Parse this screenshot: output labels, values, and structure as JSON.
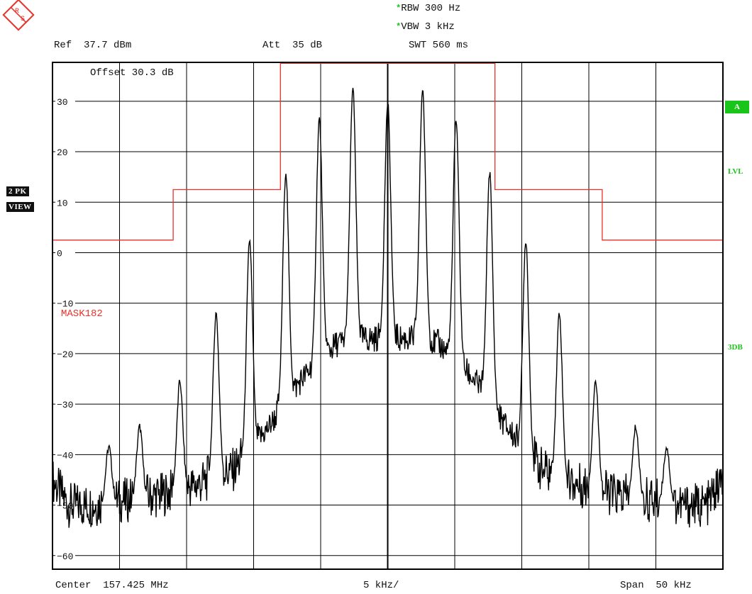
{
  "header": {
    "rbw": "RBW 300 Hz",
    "vbw": "VBW 3 kHz",
    "swt": "SWT 560 ms",
    "star_glyph": "*",
    "ref": "Ref  37.7 dBm",
    "att": "Att  35 dB",
    "offset": "Offset  30.3 dB"
  },
  "side_left": {
    "trace_badge": "2 PK",
    "view_badge": "VIEW"
  },
  "side_right": {
    "a_box": "A",
    "lvl": "LVL",
    "db3": "3DB"
  },
  "footer": {
    "center": "Center  157.425 MHz",
    "div": "5 kHz/",
    "span": "Span  50 kHz"
  },
  "logo": {
    "text": "R&S"
  },
  "colors": {
    "trace": "#000000",
    "mask": "#e8332a",
    "accent": "#19c519",
    "grid": "#000000"
  },
  "chart_data": {
    "type": "line",
    "xlim": [
      -25,
      25
    ],
    "ylim": [
      -62.7,
      37.7
    ],
    "x_unit": "kHz offset from center",
    "y_unit": "dBm",
    "y_ticks": [
      30,
      20,
      10,
      0,
      -10,
      -20,
      -30,
      -40,
      -50,
      -60
    ],
    "mask": {
      "label": "MASK182",
      "points": [
        [
          -25,
          2.5
        ],
        [
          -16,
          2.5
        ],
        [
          -16,
          12.5
        ],
        [
          -8,
          12.5
        ],
        [
          -8,
          37.5
        ],
        [
          8,
          37.5
        ],
        [
          8,
          12.5
        ],
        [
          16,
          12.5
        ],
        [
          16,
          2.5
        ],
        [
          25,
          2.5
        ]
      ]
    },
    "peaks": [
      {
        "x": -20.8,
        "y": -38.5
      },
      {
        "x": -18.5,
        "y": -34.5
      },
      {
        "x": -15.5,
        "y": -25.5
      },
      {
        "x": -12.8,
        "y": -12.0
      },
      {
        "x": -10.3,
        "y": 2.5
      },
      {
        "x": -7.6,
        "y": 16.0
      },
      {
        "x": -5.1,
        "y": 26.5
      },
      {
        "x": -2.6,
        "y": 32.5
      },
      {
        "x": 0,
        "y": 29.5
      },
      {
        "x": 2.6,
        "y": 32.5
      },
      {
        "x": 5.1,
        "y": 26.5
      },
      {
        "x": 7.6,
        "y": 16.0
      },
      {
        "x": 10.3,
        "y": 2.5
      },
      {
        "x": 12.8,
        "y": -12.0
      },
      {
        "x": 15.5,
        "y": -25.5
      },
      {
        "x": 18.5,
        "y": -34.5
      },
      {
        "x": 20.8,
        "y": -38.5
      }
    ],
    "valleys": [
      {
        "x": -25,
        "y": -45
      },
      {
        "x": -23.8,
        "y": -50
      },
      {
        "x": -22,
        "y": -50
      },
      {
        "x": -19.6,
        "y": -49
      },
      {
        "x": -17.0,
        "y": -48
      },
      {
        "x": -14.2,
        "y": -46
      },
      {
        "x": -11.5,
        "y": -43
      },
      {
        "x": -9.0,
        "y": -35
      },
      {
        "x": -6.4,
        "y": -25
      },
      {
        "x": -3.8,
        "y": -18
      },
      {
        "x": -1.3,
        "y": -17
      },
      {
        "x": 1.3,
        "y": -17
      },
      {
        "x": 3.8,
        "y": -18
      },
      {
        "x": 6.4,
        "y": -25
      },
      {
        "x": 9.0,
        "y": -35
      },
      {
        "x": 11.5,
        "y": -43
      },
      {
        "x": 14.2,
        "y": -46
      },
      {
        "x": 17.0,
        "y": -48
      },
      {
        "x": 19.6,
        "y": -49
      },
      {
        "x": 22,
        "y": -50
      },
      {
        "x": 23.8,
        "y": -50
      },
      {
        "x": 25,
        "y": -45
      }
    ]
  }
}
